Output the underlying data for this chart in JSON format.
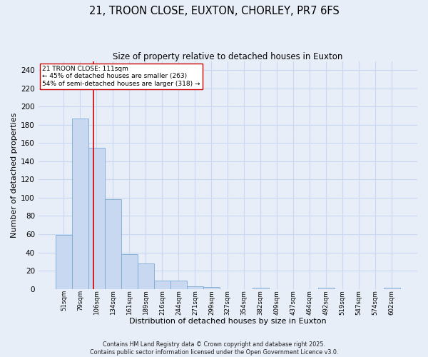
{
  "title_line1": "21, TROON CLOSE, EUXTON, CHORLEY, PR7 6FS",
  "title_line2": "Size of property relative to detached houses in Euxton",
  "xlabel": "Distribution of detached houses by size in Euxton",
  "ylabel": "Number of detached properties",
  "bar_labels": [
    "51sqm",
    "79sqm",
    "106sqm",
    "134sqm",
    "161sqm",
    "189sqm",
    "216sqm",
    "244sqm",
    "271sqm",
    "299sqm",
    "327sqm",
    "354sqm",
    "382sqm",
    "409sqm",
    "437sqm",
    "464sqm",
    "492sqm",
    "519sqm",
    "547sqm",
    "574sqm",
    "602sqm"
  ],
  "bar_values": [
    59,
    187,
    155,
    98,
    38,
    28,
    9,
    9,
    3,
    2,
    0,
    0,
    1,
    0,
    0,
    0,
    1,
    0,
    0,
    0,
    1
  ],
  "bar_color": "#c8d8f0",
  "bar_edge_color": "#7aaad4",
  "vline_x": 1.82,
  "vline_color": "#cc0000",
  "annotation_text": "21 TROON CLOSE: 111sqm\n← 45% of detached houses are smaller (263)\n54% of semi-detached houses are larger (318) →",
  "annotation_box_color": "#ffffff",
  "annotation_box_edge": "#cc0000",
  "ylim": [
    0,
    250
  ],
  "yticks": [
    0,
    20,
    40,
    60,
    80,
    100,
    120,
    140,
    160,
    180,
    200,
    220,
    240
  ],
  "grid_color": "#c8d8f0",
  "bg_color": "#e8eef8",
  "footer_line1": "Contains HM Land Registry data © Crown copyright and database right 2025.",
  "footer_line2": "Contains public sector information licensed under the Open Government Licence v3.0."
}
